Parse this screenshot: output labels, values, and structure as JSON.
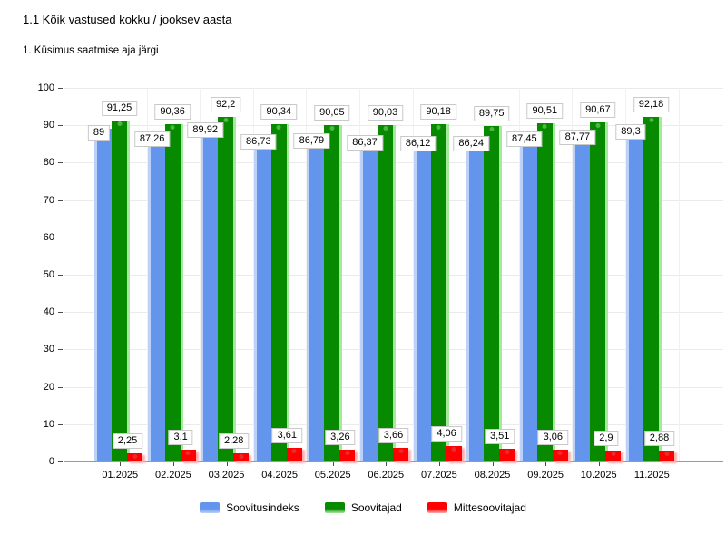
{
  "chart_data": {
    "type": "bar",
    "title": "1.1 Kõik vastused kokku / jooksev aasta",
    "subtitle": "1. Küsimus saatmise aja järgi",
    "categories": [
      "01.2025",
      "02.2025",
      "03.2025",
      "04.2025",
      "05.2025",
      "06.2025",
      "07.2025",
      "08.2025",
      "09.2025",
      "10.2025",
      "11.2025"
    ],
    "series": [
      {
        "name": "Soovitusindeks",
        "color": "#6495ED",
        "light": "#BBD1F7",
        "dot": "#87AEF0",
        "values": [
          89,
          87.26,
          89.92,
          86.73,
          86.79,
          86.37,
          86.12,
          86.24,
          87.45,
          87.77,
          89.3
        ]
      },
      {
        "name": "Soovitajad",
        "color": "#088A00",
        "light": "#A5E89E",
        "dot": "#55BB4A",
        "values": [
          91.25,
          90.36,
          92.2,
          90.34,
          90.05,
          90.03,
          90.18,
          89.75,
          90.51,
          90.67,
          92.18
        ]
      },
      {
        "name": "Mittesoovitajad",
        "color": "#FF0000",
        "light": "#FFAFAF",
        "dot": "#E83030",
        "values": [
          2.25,
          3.1,
          2.28,
          3.61,
          3.26,
          3.66,
          4.06,
          3.51,
          3.06,
          2.9,
          2.88
        ]
      }
    ],
    "xlabel": "",
    "ylabel": "",
    "ylim": [
      0,
      100
    ],
    "ytick_step": 10,
    "grid": true,
    "legend_position": "bottom",
    "decimal_separator": ","
  }
}
